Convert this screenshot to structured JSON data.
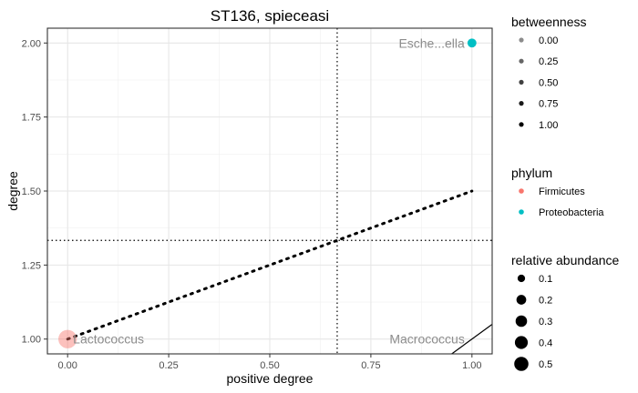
{
  "chart_data": {
    "type": "scatter",
    "title": "ST136, spieceasi",
    "xlabel": "positive degree",
    "ylabel": "degree",
    "xlim": [
      -0.05,
      1.05
    ],
    "ylim": [
      0.95,
      2.05
    ],
    "x_ticks": [
      0.0,
      0.25,
      0.5,
      0.75,
      1.0
    ],
    "x_tick_labels": [
      "0.00",
      "0.25",
      "0.50",
      "0.75",
      "1.00"
    ],
    "y_ticks": [
      1.0,
      1.25,
      1.5,
      1.75,
      2.0
    ],
    "y_tick_labels": [
      "1.00",
      "1.25",
      "1.50",
      "1.75",
      "2.00"
    ],
    "grid": true,
    "points": [
      {
        "label": "Lactococcus",
        "x": 0.0,
        "y": 1.0,
        "phylum": "Firmicutes",
        "relative_abundance": 0.52,
        "betweenness": 0.0
      },
      {
        "label": "Esche...ella",
        "x": 1.0,
        "y": 2.0,
        "phylum": "Proteobacteria",
        "relative_abundance": 0.08,
        "betweenness": 0.0
      },
      {
        "label": "Macrococcus",
        "x": 1.0,
        "y": 1.0,
        "phylum": "Firmicutes",
        "relative_abundance": 0.0,
        "betweenness": 0.0
      }
    ],
    "reference_lines": [
      {
        "kind": "vline",
        "x": 0.6667,
        "style": "dotted"
      },
      {
        "kind": "hline",
        "y": 1.3333,
        "style": "dotted"
      },
      {
        "kind": "abline",
        "x1": 0.0,
        "y1": 1.0,
        "x2": 1.0,
        "y2": 1.5,
        "style": "dotted"
      },
      {
        "kind": "abline",
        "x1": 0.95,
        "y1": 0.95,
        "x2": 1.05,
        "y2": 1.05,
        "style": "solid"
      }
    ],
    "legend_placement": "right",
    "legends": [
      {
        "title": "betweenness",
        "keys": [
          {
            "label": "0.00",
            "alpha": 0.45
          },
          {
            "label": "0.25",
            "alpha": 0.6
          },
          {
            "label": "0.50",
            "alpha": 0.75
          },
          {
            "label": "0.75",
            "alpha": 0.9
          },
          {
            "label": "1.00",
            "alpha": 1.0
          }
        ]
      },
      {
        "title": "phylum",
        "keys": [
          {
            "label": "Firmicutes",
            "color": "#F8766D"
          },
          {
            "label": "Proteobacteria",
            "color": "#00BFC4"
          }
        ]
      },
      {
        "title": "relative abundance",
        "keys": [
          {
            "label": "0.1",
            "value": 0.1
          },
          {
            "label": "0.2",
            "value": 0.2
          },
          {
            "label": "0.3",
            "value": 0.3
          },
          {
            "label": "0.4",
            "value": 0.4
          },
          {
            "label": "0.5",
            "value": 0.5
          }
        ]
      }
    ]
  }
}
